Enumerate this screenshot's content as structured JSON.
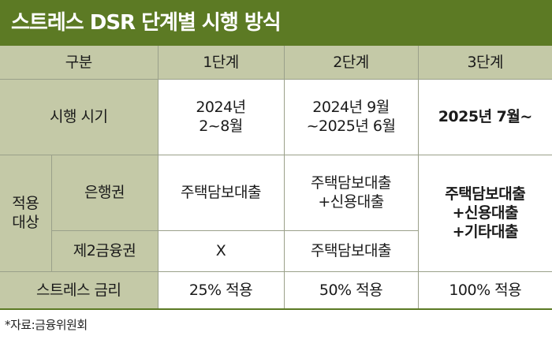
{
  "title": "스트레스 DSR 단계별 시행 방식",
  "columns": [
    "구분",
    "1단계",
    "2단계",
    "3단계"
  ],
  "rows": {
    "timing": {
      "label": "시행 시기",
      "stage1": [
        "2024년",
        "2~8월"
      ],
      "stage2": [
        "2024년 9월",
        "~2025년 6월"
      ],
      "stage3": [
        "2025년 7월~"
      ]
    },
    "target": {
      "label": [
        "적용",
        "대상"
      ],
      "bank": {
        "label": "은행권",
        "stage1": [
          "주택담보대출"
        ],
        "stage2": [
          "주택담보대출",
          "+신용대출"
        ]
      },
      "secondary": {
        "label": "제2금융권",
        "stage1": [
          "X"
        ],
        "stage2": [
          "주택담보대출"
        ]
      },
      "stage3": [
        "주택담보대출",
        "+신용대출",
        "+기타대출"
      ]
    },
    "stress_rate": {
      "label": "스트레스 금리",
      "stage1": "25% 적용",
      "stage2": "50% 적용",
      "stage3": "100% 적용"
    }
  },
  "source": "*자료:금융위원회",
  "colors": {
    "title_bg": "#5c7a24",
    "header_bg": "#c4c9a7",
    "border": "#9aa08a"
  }
}
